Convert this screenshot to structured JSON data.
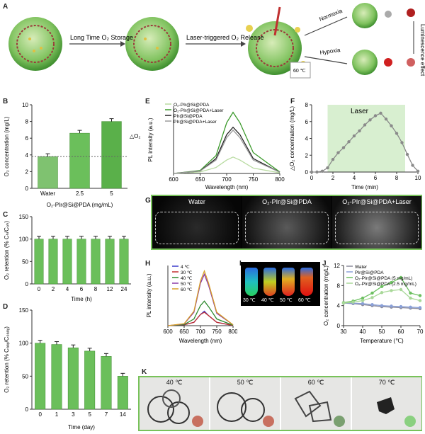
{
  "panels": {
    "A": "A",
    "B": "B",
    "C": "C",
    "D": "D",
    "E": "E",
    "F": "F",
    "G": "G",
    "H": "H",
    "I": "I",
    "J": "J",
    "K": "K"
  },
  "schematic": {
    "step1": "Long Time O₂ Storage",
    "step2": "Laser-triggered O₂ Release",
    "normoxia": "Normoxia",
    "hypoxia": "Hypoxia",
    "luminescence": "Luminescence effect",
    "temp": "60 ℃"
  },
  "chart_data": [
    {
      "panel": "B",
      "type": "bar",
      "categories": [
        "Water",
        "2.5",
        "5"
      ],
      "values": [
        3.8,
        6.6,
        8.0
      ],
      "xlabel": "O₂-PIr@Si@PDA (mg/mL)",
      "ylabel": "O₂ concentration (mg/L)",
      "ylim": [
        0,
        10
      ],
      "yticks": [
        "0",
        "2",
        "4",
        "6",
        "8",
        "10"
      ],
      "annotation": "△O₂"
    },
    {
      "panel": "C",
      "type": "bar",
      "categories": [
        "0",
        "2",
        "4",
        "6",
        "8",
        "12",
        "24"
      ],
      "values": [
        100,
        100,
        100,
        100,
        100,
        100,
        100
      ],
      "xlabel": "Time (h)",
      "ylabel": "O₂ retention (% Cₕ/C₀ₕ)",
      "ylim": [
        0,
        150
      ],
      "yticks": [
        "0",
        "50",
        "100",
        "150"
      ]
    },
    {
      "panel": "D",
      "type": "bar",
      "categories": [
        "0",
        "1",
        "3",
        "5",
        "7",
        "14"
      ],
      "values": [
        100,
        98,
        93,
        88,
        80,
        50
      ],
      "xlabel": "Time (day)",
      "ylabel": "O₂ retention (% Cₐₐᵧ/C₀ₐₐᵧ)",
      "ylim": [
        0,
        150
      ],
      "yticks": [
        "0",
        "50",
        "100",
        "150"
      ]
    },
    {
      "panel": "E",
      "type": "line",
      "x": [
        600,
        650,
        680,
        700,
        712,
        725,
        750,
        800
      ],
      "series": [
        {
          "name": "O₂-PIr@Si@PDA",
          "color": "#b8dba0",
          "values": [
            0,
            0.05,
            0.2,
            0.45,
            0.55,
            0.45,
            0.18,
            0.02
          ]
        },
        {
          "name": "O₂-PIr@Si@PDA+Laser",
          "color": "#3c9a2c",
          "values": [
            0,
            0.1,
            0.6,
            1.7,
            2.05,
            1.7,
            0.7,
            0.05
          ]
        },
        {
          "name": "PIr@Si@PDA",
          "color": "#222222",
          "values": [
            0,
            0.08,
            0.5,
            1.3,
            1.55,
            1.3,
            0.5,
            0.04
          ]
        },
        {
          "name": "PIr@Si@PDA+Laser",
          "color": "#9a9a9a",
          "values": [
            0,
            0.08,
            0.45,
            1.2,
            1.45,
            1.2,
            0.45,
            0.04
          ]
        }
      ],
      "xlabel": "Wavelength (nm)",
      "ylabel": "PL intensity (a.u.)",
      "xlim": [
        600,
        800
      ],
      "xticks": [
        "600",
        "650",
        "700",
        "750",
        "800"
      ]
    },
    {
      "panel": "F",
      "type": "line",
      "x": [
        0,
        0.5,
        1,
        1.5,
        2,
        2.5,
        3,
        3.5,
        4,
        4.5,
        5,
        5.5,
        6,
        6.5,
        7,
        7.5,
        8,
        8.5,
        9,
        9.5,
        10
      ],
      "values": [
        0,
        0,
        0.1,
        0.5,
        1.5,
        2.3,
        2.9,
        3.6,
        4.3,
        4.9,
        5.6,
        6.2,
        6.7,
        7.0,
        6.3,
        5.5,
        4.6,
        3.5,
        2.1,
        0.8,
        0.1
      ],
      "xlabel": "Time (min)",
      "ylabel": "△O₂ concentration (mg/L)",
      "xlim": [
        0,
        10
      ],
      "ylim": [
        0,
        8
      ],
      "xticks": [
        "0",
        "2",
        "4",
        "6",
        "8",
        "10"
      ],
      "yticks": [
        "0",
        "2",
        "4",
        "6",
        "8"
      ],
      "shaded_label": "Laser",
      "shaded_range": [
        1.5,
        8.8
      ]
    },
    {
      "panel": "H",
      "type": "line",
      "x": [
        600,
        650,
        680,
        700,
        712,
        725,
        750,
        800
      ],
      "series": [
        {
          "name": "4 ℃",
          "color": "#3a3acb",
          "values": [
            0,
            0.04,
            0.15,
            0.5,
            0.65,
            0.45,
            0.15,
            0.01
          ]
        },
        {
          "name": "30 ℃",
          "color": "#c23030",
          "values": [
            0,
            0.04,
            0.15,
            0.5,
            0.6,
            0.45,
            0.15,
            0.01
          ]
        },
        {
          "name": "40 ℃",
          "color": "#2e8a2e",
          "values": [
            0,
            0.05,
            0.3,
            0.9,
            1.1,
            0.85,
            0.3,
            0.02
          ]
        },
        {
          "name": "50 ℃",
          "color": "#8a3aa8",
          "values": [
            0,
            0.08,
            0.6,
            1.9,
            2.3,
            1.8,
            0.55,
            0.04
          ]
        },
        {
          "name": "60 ℃",
          "color": "#d8a028",
          "values": [
            0,
            0.09,
            0.65,
            2.0,
            2.45,
            1.9,
            0.6,
            0.04
          ]
        }
      ],
      "xlabel": "Wavelength (nm)",
      "ylabel": "PL intensity (a.u.)",
      "xlim": [
        600,
        800
      ],
      "xticks": [
        "600",
        "650",
        "700",
        "750",
        "800"
      ]
    },
    {
      "panel": "J",
      "type": "line",
      "x": [
        30,
        35,
        40,
        45,
        50,
        55,
        60,
        65,
        70
      ],
      "series": [
        {
          "name": "Water",
          "color": "#8a8a9a",
          "values": [
            4.5,
            4.4,
            4.2,
            4.0,
            3.8,
            3.7,
            3.6,
            3.5,
            3.4
          ]
        },
        {
          "name": "PIr@Si@PDA",
          "color": "#8aa0d8",
          "values": [
            4.5,
            4.5,
            4.4,
            4.2,
            4.0,
            3.9,
            3.8,
            3.7,
            3.6
          ]
        },
        {
          "name": "O₂-PIr@Si@PDA (5 mg/mL)",
          "color": "#6cc060",
          "values": [
            4.6,
            4.9,
            5.5,
            6.5,
            7.8,
            8.6,
            9.6,
            6.5,
            6.0
          ]
        },
        {
          "name": "O₂-PIr@Si@PDA (2.5 mg/mL)",
          "color": "#a8d898",
          "values": [
            4.5,
            4.7,
            5.0,
            5.6,
            6.6,
            7.0,
            7.2,
            5.5,
            5.0
          ]
        }
      ],
      "xlabel": "Temperature (℃)",
      "ylabel": "O₂ concentration (mg/L)",
      "xlim": [
        30,
        70
      ],
      "ylim": [
        0,
        12
      ],
      "xticks": [
        "30",
        "40",
        "50",
        "60",
        "70"
      ],
      "yticks": [
        "0",
        "4",
        "8",
        "12"
      ]
    }
  ],
  "panelG": {
    "labels": [
      "Water",
      "O₂-PIr@Si@PDA",
      "O₂-PIr@Si@PDA+Laser"
    ]
  },
  "panelI": {
    "labels": [
      "30 ℃",
      "40 ℃",
      "50 ℃",
      "60 ℃"
    ]
  },
  "panelK": {
    "labels": [
      "40 ℃",
      "50 ℃",
      "60 ℃",
      "70 ℃"
    ]
  },
  "colors": {
    "accent": "#6bbf5b",
    "dark_green": "#3c9a2c"
  }
}
